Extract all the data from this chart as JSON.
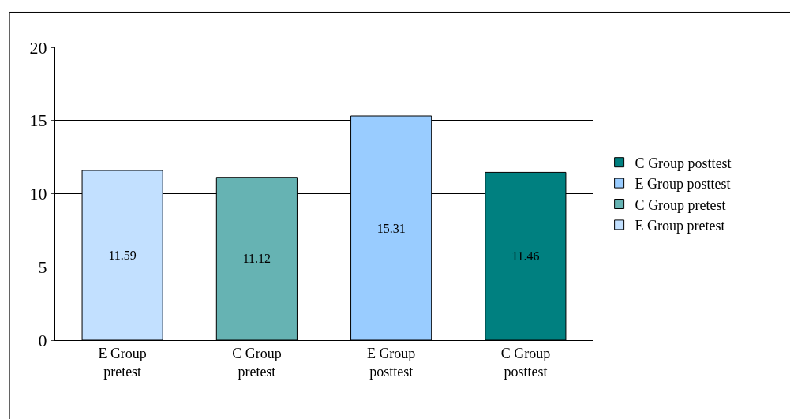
{
  "chart_data": {
    "type": "bar",
    "categories": [
      "E Group pretest",
      "C Group pretest",
      "E Group posttest",
      "C Group posttest"
    ],
    "series": [
      {
        "name": "E Group pretest",
        "color": "#c2e0ff",
        "values": [
          11.59,
          null,
          null,
          null
        ]
      },
      {
        "name": "C Group pretest",
        "color": "#66b3b3",
        "values": [
          null,
          11.12,
          null,
          null
        ]
      },
      {
        "name": "E Group posttest",
        "color": "#99ccff",
        "values": [
          null,
          null,
          15.31,
          null
        ]
      },
      {
        "name": "C Group posttest",
        "color": "#008080",
        "values": [
          null,
          null,
          null,
          11.46
        ]
      }
    ],
    "ylim": [
      0,
      20
    ],
    "yticks": [
      0,
      5,
      10,
      15,
      20
    ],
    "grid": "y",
    "legend": "right",
    "data_labels": true
  }
}
